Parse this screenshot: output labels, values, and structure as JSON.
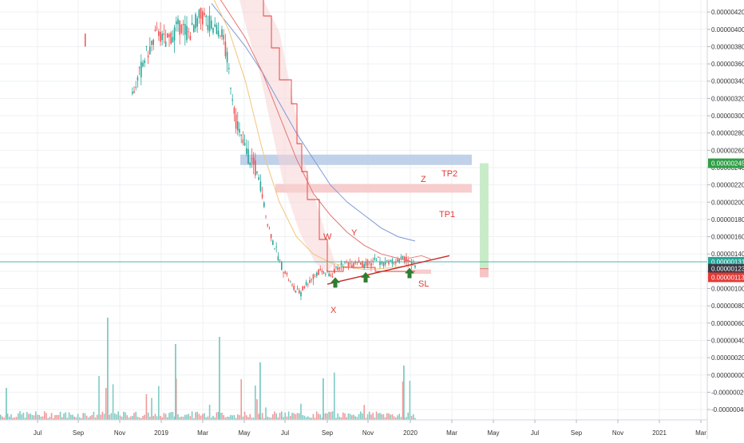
{
  "chart_data": {
    "type": "candlestick",
    "y_axis": {
      "position": "right",
      "ticks": [
        "0.00000420",
        "0.00000400",
        "0.00000380",
        "0.00000360",
        "0.00000340",
        "0.00000320",
        "0.00000300",
        "0.00000280",
        "0.00000260",
        "0.00000240",
        "0.00000220",
        "0.00000200",
        "0.00000180",
        "0.00000160",
        "0.00000140",
        "0.00000120",
        "0.00000100",
        "0.00000080",
        "0.00000060",
        "0.00000040",
        "0.00000020",
        "0.00000000",
        "-0.00000020",
        "-0.00000040"
      ],
      "tick_values": [
        420,
        400,
        380,
        360,
        340,
        320,
        300,
        280,
        260,
        240,
        220,
        200,
        180,
        160,
        140,
        120,
        100,
        80,
        60,
        40,
        20,
        0,
        -20,
        -40
      ],
      "range": [
        -47,
        425
      ]
    },
    "x_axis": {
      "ticks": [
        "Jul",
        "Sep",
        "Nov",
        "2019",
        "Mar",
        "May",
        "Jul",
        "Sep",
        "Nov",
        "2020",
        "Mar",
        "May",
        "Jul",
        "Sep",
        "Nov",
        "2021",
        "Mar"
      ]
    },
    "price_badges": [
      {
        "label": "0.00000245",
        "value": 245,
        "color": "#2e9e46"
      },
      {
        "label": "0.00000131",
        "value": 131,
        "color": "#26a69a"
      },
      {
        "label": "0.00000123",
        "value": 123,
        "color": "#363a45"
      },
      {
        "label": "0.00000113",
        "value": 113,
        "color": "#e53935"
      }
    ],
    "annotations": [
      {
        "text": "W",
        "color": "#e53935"
      },
      {
        "text": "Y",
        "color": "#e53935"
      },
      {
        "text": "Z",
        "color": "#e53935"
      },
      {
        "text": "X",
        "color": "#e53935"
      },
      {
        "text": "TP2",
        "color": "#e53935"
      },
      {
        "text": "TP1",
        "color": "#e53935"
      },
      {
        "text": "SL",
        "color": "#e53935"
      }
    ],
    "zones": [
      {
        "name": "blue-resistance-zone",
        "y_range": [
          243,
          255
        ],
        "color": "#b5c9e6"
      },
      {
        "name": "red-target-zone",
        "y_range": [
          211,
          221
        ],
        "color": "#f6c4c4"
      },
      {
        "name": "stop-zone",
        "y_range": [
          117,
          122
        ],
        "color": "#f6c4c4"
      }
    ],
    "position_tool": {
      "entry": 123,
      "target": 245,
      "stop": 113,
      "profit_color": "#c8ecc8",
      "loss_color": "#f6c4c4"
    },
    "horizontal_line": {
      "value": 131,
      "color": "#4db6ac"
    },
    "trendline": {
      "from": 105,
      "to": 138,
      "color": "#c62828"
    },
    "markers": [
      "up-arrow",
      "up-arrow",
      "up-arrow"
    ],
    "price_path": [
      325,
      345,
      370,
      380,
      400,
      385,
      390,
      405,
      400,
      395,
      410,
      415,
      405,
      400,
      395,
      350,
      300,
      270,
      255,
      240,
      215,
      175,
      150,
      130,
      115,
      100,
      95,
      105,
      112,
      120,
      118,
      115,
      125,
      130,
      128,
      132,
      125,
      130,
      135,
      128,
      132,
      130,
      135,
      130,
      127
    ],
    "ma_lines": [
      {
        "name": "ma-blue",
        "color": "#7e9ad6",
        "path": [
          430,
          405,
          380,
          350,
          315,
          280,
          250,
          220,
          200,
          185,
          170,
          160,
          155
        ]
      },
      {
        "name": "ma-red",
        "color": "#e57373",
        "path": [
          450,
          420,
          390,
          350,
          300,
          250,
          210,
          185,
          165,
          150,
          140,
          135,
          130
        ]
      },
      {
        "name": "ma-orange",
        "color": "#f2c57c",
        "path": [
          440,
          400,
          340,
          260,
          200,
          160,
          140,
          130,
          125,
          122,
          123,
          125,
          127
        ]
      }
    ],
    "grid": true,
    "legend": "none"
  }
}
